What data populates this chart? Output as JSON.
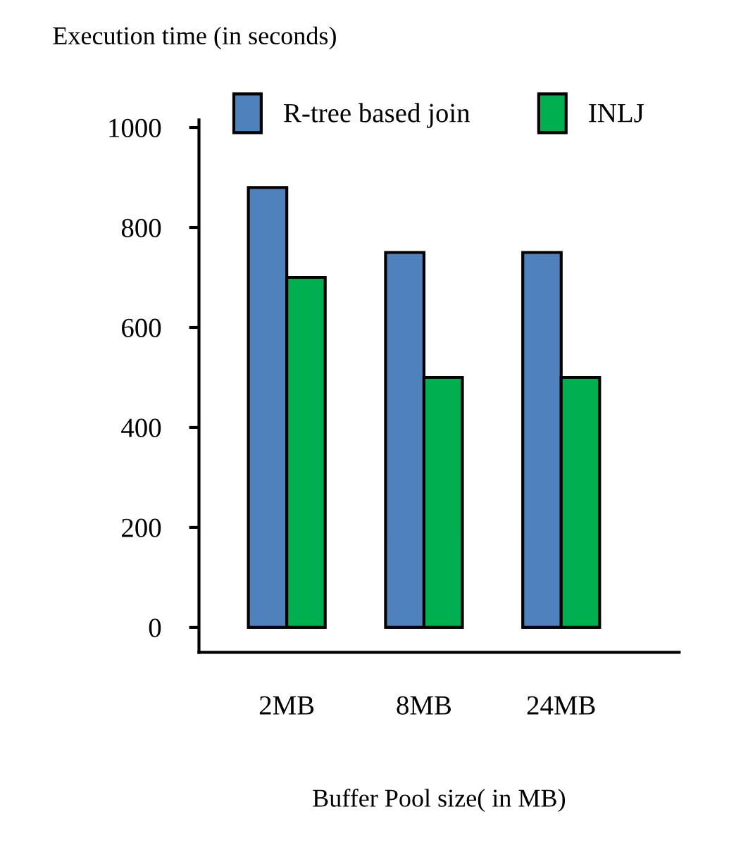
{
  "chart_data": {
    "type": "bar",
    "title": "Execution time (in seconds)",
    "xlabel": "Buffer Pool size( in MB)",
    "categories": [
      "2MB",
      "8MB",
      "24MB"
    ],
    "series": [
      {
        "name": "R-tree based join",
        "color": "#4f81bd",
        "values": [
          880,
          750,
          750
        ]
      },
      {
        "name": "INLJ",
        "color": "#00b050",
        "values": [
          700,
          500,
          500
        ]
      }
    ],
    "ylim": [
      -50,
      1015
    ],
    "yticks": [
      0,
      200,
      400,
      600,
      800,
      1000
    ],
    "grid": false,
    "legend": "top"
  }
}
